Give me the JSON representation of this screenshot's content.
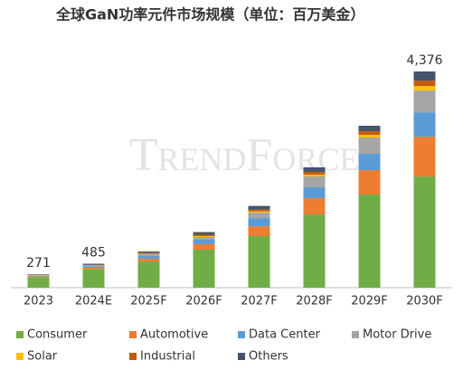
{
  "chart_data": {
    "type": "stacked_bar",
    "title": "全球GaN功率元件市场规模（单位：百万美金）",
    "watermark": "TrendForce",
    "categories": [
      "2023",
      "2024E",
      "2025F",
      "2026F",
      "2027F",
      "2028F",
      "2029F",
      "2030F"
    ],
    "series": [
      {
        "name": "Consumer",
        "color": "#70ad47",
        "values": [
          215,
          380,
          530,
          770,
          1043,
          1482,
          1885,
          2250
        ]
      },
      {
        "name": "Automotive",
        "color": "#ed7d31",
        "values": [
          15,
          30,
          55,
          110,
          200,
          330,
          494,
          805
        ]
      },
      {
        "name": "Data Center",
        "color": "#5b9bd5",
        "values": [
          12,
          20,
          55,
          90,
          165,
          220,
          330,
          494
        ]
      },
      {
        "name": "Motor Drive",
        "color": "#a5a5a5",
        "values": [
          10,
          20,
          37,
          55,
          110,
          220,
          330,
          440
        ]
      },
      {
        "name": "Solar",
        "color": "#ffc000",
        "values": [
          3,
          5,
          10,
          18,
          27,
          37,
          55,
          92
        ]
      },
      {
        "name": "Industrial",
        "color": "#c55a11",
        "values": [
          6,
          10,
          15,
          27,
          37,
          55,
          73,
          110
        ]
      },
      {
        "name": "Others",
        "color": "#44546a",
        "values": [
          10,
          20,
          30,
          55,
          73,
          92,
          110,
          185
        ]
      }
    ],
    "totals": [
      271,
      485,
      null,
      null,
      null,
      null,
      null,
      4376
    ],
    "totals_labels": [
      "271",
      "485",
      null,
      null,
      null,
      null,
      null,
      "4,376"
    ],
    "legend": "bottom"
  }
}
